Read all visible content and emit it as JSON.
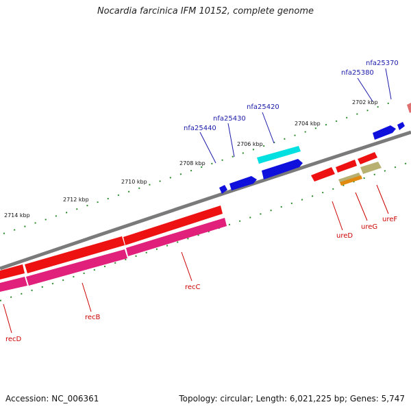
{
  "title": "Nocardia farcinica IFM 10152, complete genome",
  "footer": {
    "accession": "Accession: NC_006361",
    "summary": "Topology: circular; Length: 6,021,225 bp; Genes: 5,747"
  },
  "colors": {
    "backbone": "#7a7a7a",
    "tick": "#1e8a1e",
    "top_label": "#1a1aaa",
    "bottom_label": "#cc0000"
  },
  "ticks": [
    {
      "label": "2702 kbp"
    },
    {
      "label": "2704 kbp"
    },
    {
      "label": "2706 kbp"
    },
    {
      "label": "2708 kbp"
    },
    {
      "label": "2710 kbp"
    },
    {
      "label": "2712 kbp"
    },
    {
      "label": "2714 kbp"
    }
  ],
  "top_genes": [
    {
      "name": "nfa25370"
    },
    {
      "name": "nfa25380"
    },
    {
      "name": "nfa25420"
    },
    {
      "name": "nfa25430"
    },
    {
      "name": "nfa25440"
    }
  ],
  "bottom_genes": [
    {
      "name": "ureF"
    },
    {
      "name": "ureG"
    },
    {
      "name": "ureD"
    },
    {
      "name": "recC"
    },
    {
      "name": "recB"
    },
    {
      "name": "recD"
    }
  ]
}
